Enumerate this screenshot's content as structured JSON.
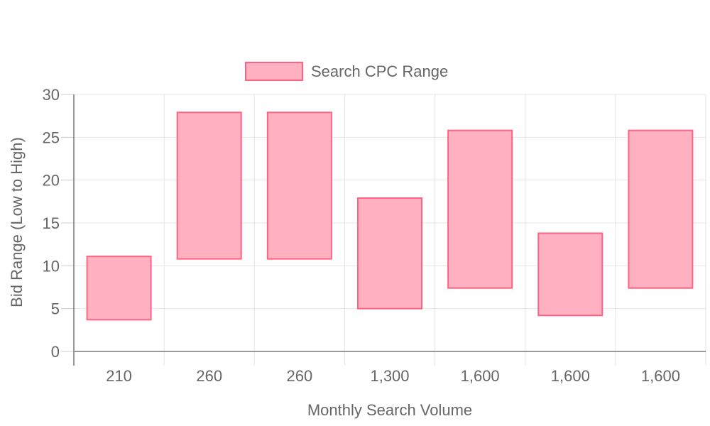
{
  "chart_data": {
    "type": "bar",
    "subtype": "floating-range",
    "categories": [
      "210",
      "260",
      "260",
      "1,300",
      "1,600",
      "1,600",
      "1,600"
    ],
    "series": [
      {
        "name": "Search CPC Range",
        "ranges": [
          [
            3.7,
            11.1
          ],
          [
            10.8,
            27.9
          ],
          [
            10.8,
            27.9
          ],
          [
            5.0,
            17.9
          ],
          [
            7.4,
            25.8
          ],
          [
            4.2,
            13.8
          ],
          [
            7.4,
            25.8
          ]
        ],
        "color": "#ffb1c1",
        "border_color": "#ff6384"
      }
    ],
    "xlabel": "Monthly Search Volume",
    "ylabel": "Bid Range (Low to High)",
    "ylim": [
      0,
      30
    ],
    "yticks": [
      "0",
      "5",
      "10",
      "15",
      "20",
      "25",
      "30"
    ],
    "grid": true,
    "legend_position": "top"
  }
}
